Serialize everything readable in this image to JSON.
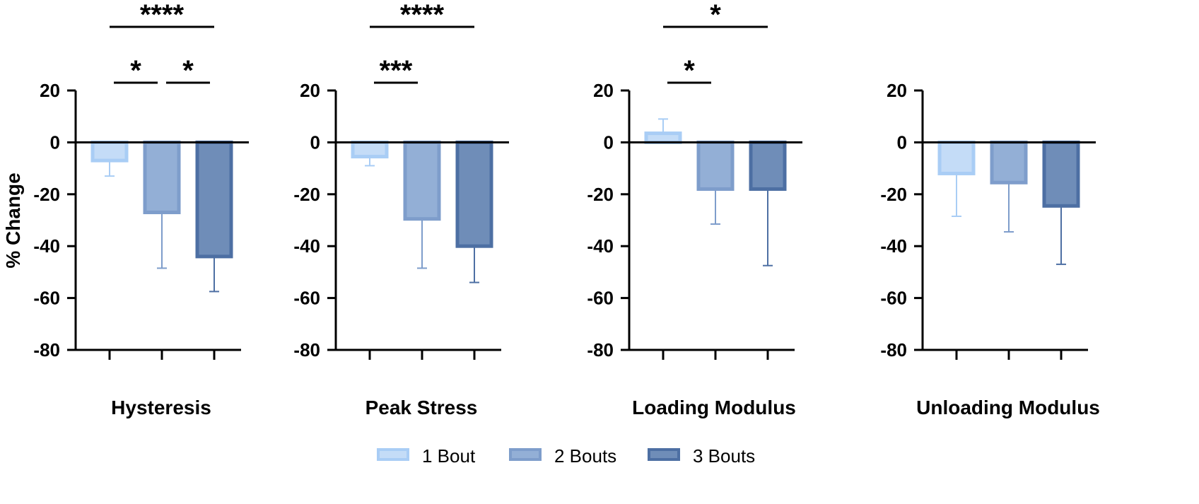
{
  "chart_data": {
    "type": "bar",
    "ylabel": "% Change",
    "ylim": [
      -80,
      20
    ],
    "yticks": [
      "20",
      "0",
      "-20",
      "-40",
      "-60",
      "-80"
    ],
    "series_names": [
      "1  Bout",
      "2 Bouts",
      "3 Bouts"
    ],
    "colors": {
      "1 Bout": "#c4dcf7",
      "2 Bouts": "#93afd6",
      "3 Bouts": "#6f8db8",
      "1 Bout edge": "#a9cdf5",
      "2 Bouts edge": "#7e9dcb",
      "3 Bouts edge": "#4d6fa3"
    },
    "panels": [
      {
        "title": "Hysteresis",
        "values": [
          -7,
          -27,
          -44
        ],
        "error_bars": [
          -13,
          -48.5,
          -57.5
        ],
        "significance": [
          {
            "from": 0,
            "to": 2,
            "label": "****"
          },
          {
            "from": 0,
            "to": 1,
            "label": "*"
          },
          {
            "from": 1,
            "to": 2,
            "label": "*"
          }
        ]
      },
      {
        "title": "Peak Stress",
        "values": [
          -5.5,
          -29.5,
          -40
        ],
        "error_bars": [
          -9,
          -48.5,
          -54
        ],
        "significance": [
          {
            "from": 0,
            "to": 2,
            "label": "****"
          },
          {
            "from": 0,
            "to": 1,
            "label": "***"
          }
        ]
      },
      {
        "title": "Loading Modulus",
        "values": [
          3.5,
          -18,
          -18
        ],
        "error_bars": [
          9,
          -31.5,
          -47.5
        ],
        "significance": [
          {
            "from": 0,
            "to": 2,
            "label": "*"
          },
          {
            "from": 0,
            "to": 1,
            "label": "*"
          }
        ]
      },
      {
        "title": "Unloading Modulus",
        "values": [
          -12,
          -15.5,
          -24.5
        ],
        "error_bars": [
          -28.5,
          -34.5,
          -47
        ],
        "significance": []
      }
    ],
    "legend_position": "bottom"
  }
}
